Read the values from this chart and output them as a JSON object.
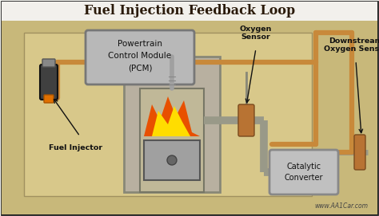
{
  "title": "Fuel Injection Feedback Loop",
  "bg_top": "#f5f5f0",
  "bg_main": "#d4bc82",
  "border_color": "#222222",
  "title_color": "#2a1a0a",
  "title_fontsize": 11.5,
  "watermark": "www.AA1Car.com",
  "label_pcm": [
    "Powertrain",
    "Control Module",
    "(PCM)"
  ],
  "label_o2": [
    "Oxygen",
    "Sensor"
  ],
  "label_ds": [
    "Downstream",
    "Oxygen Sensor"
  ],
  "label_fi": "Fuel Injector",
  "label_cat": [
    "Catalytic",
    "Converter"
  ],
  "pcm_fill": "#b8b8b8",
  "pcm_edge": "#777777",
  "cat_fill": "#c0c0c0",
  "cat_edge": "#888888",
  "pipe_color": "#c8893a",
  "pipe_lw": 4.5,
  "exhaust_color": "#999988",
  "exhaust_lw": 7,
  "sensor_fill": "#b87333",
  "sensor_edge": "#7a4a1e",
  "arrow_color": "#111111",
  "text_color": "#111111",
  "lbl_fs": 6.8,
  "inset_bg": "#c8a85a",
  "inset_edge": "#8a7040",
  "cyl_fill": "#c8c0b0",
  "cyl_edge": "#666655",
  "piston_fill": "#a0a0a0",
  "flame_outer": "#e85000",
  "flame_inner": "#ffdd00",
  "spark_color": "#b0b0b0",
  "injector_body": "#404040",
  "injector_tip": "#e07000"
}
